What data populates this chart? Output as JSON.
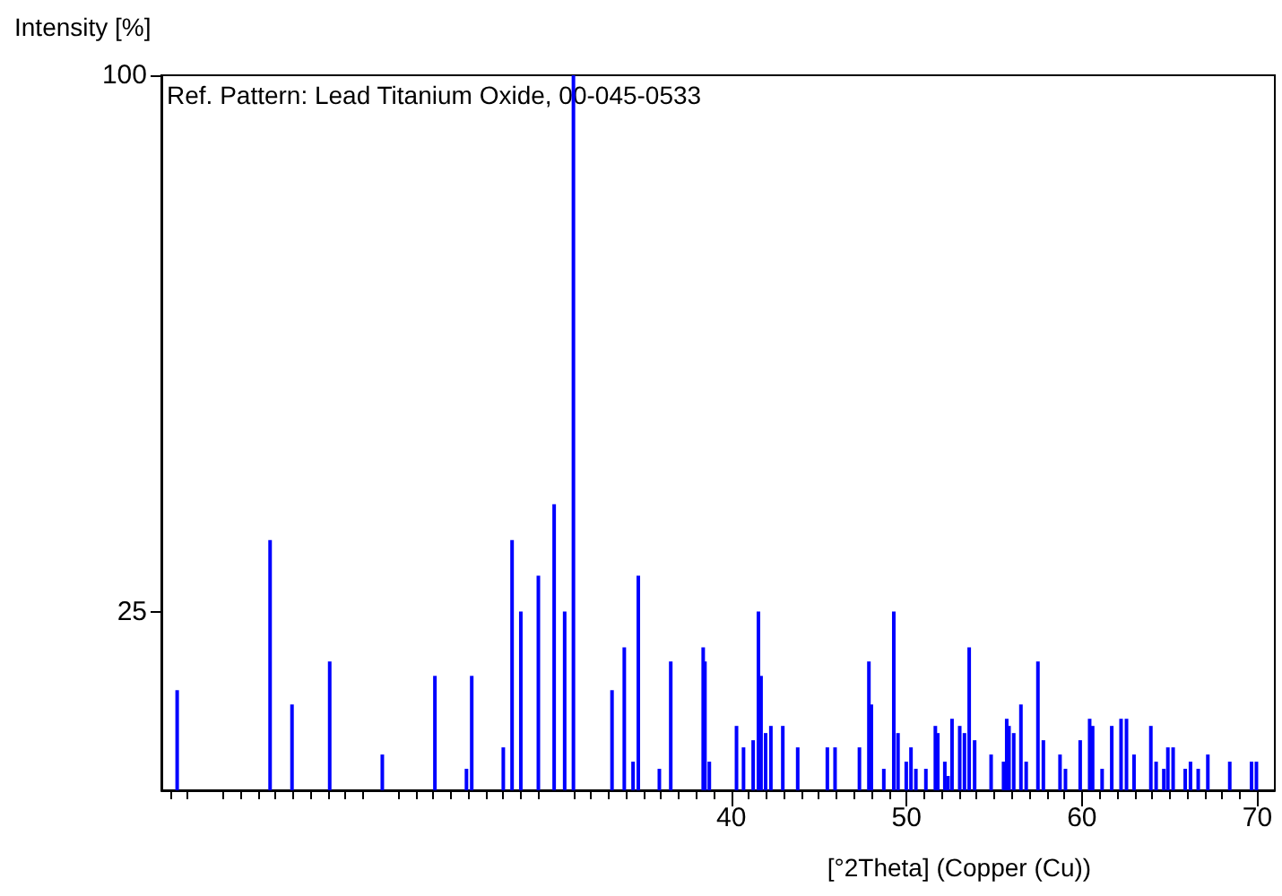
{
  "chart_data": {
    "type": "bar",
    "title": "Ref. Pattern: Lead Titanium Oxide, 00-045-0533",
    "xlabel": "[°2Theta] (Copper (Cu))",
    "ylabel": "Intensity [%]",
    "xlim": [
      7.5,
      71
    ],
    "ylim": [
      0,
      100
    ],
    "xticks": [
      40,
      50,
      60,
      70
    ],
    "yticks": [
      25,
      100
    ],
    "grid": false,
    "series": [
      {
        "color": "#0000ff",
        "x": [
          8.4,
          13.7,
          14.95,
          17.1,
          20.1,
          23.1,
          24.9,
          25.2,
          27.0,
          27.5,
          28.0,
          29.0,
          29.9,
          30.5,
          31.0,
          33.2,
          33.9,
          34.4,
          34.7,
          35.9,
          36.55,
          38.4,
          38.5,
          38.75,
          40.3,
          40.7,
          41.25,
          41.55,
          41.7,
          41.96,
          42.26,
          42.94,
          43.79,
          45.48,
          45.92,
          47.31,
          47.85,
          47.99,
          48.7,
          49.27,
          49.51,
          49.98,
          50.25,
          50.53,
          51.1,
          51.64,
          51.78,
          52.18,
          52.36,
          52.59,
          53.03,
          53.3,
          53.57,
          53.88,
          54.82,
          55.53,
          55.71,
          55.84,
          56.11,
          56.52,
          56.82,
          57.49,
          57.8,
          58.75,
          59.06,
          59.9,
          60.44,
          60.61,
          61.15,
          61.7,
          62.23,
          62.54,
          62.97,
          63.93,
          64.23,
          64.67,
          64.9,
          65.2,
          65.89,
          66.19,
          66.63,
          67.18,
          68.43,
          69.67,
          69.95
        ],
        "values": [
          14,
          35,
          12,
          18,
          5,
          16,
          3,
          16,
          6,
          35,
          25,
          30,
          40,
          25,
          100,
          14,
          20,
          4,
          30,
          3,
          18,
          20,
          18,
          4,
          9,
          6,
          7,
          25,
          16,
          8,
          9,
          9,
          6,
          6,
          6,
          6,
          18,
          12,
          3,
          25,
          8,
          4,
          6,
          3,
          3,
          9,
          8,
          4,
          2,
          10,
          9,
          8,
          20,
          7,
          5,
          4,
          10,
          9,
          8,
          12,
          4,
          18,
          7,
          5,
          3,
          7,
          10,
          9,
          3,
          9,
          10,
          10,
          5,
          9,
          4,
          3,
          6,
          6,
          3,
          4,
          3,
          5,
          4,
          4,
          4
        ]
      }
    ]
  }
}
